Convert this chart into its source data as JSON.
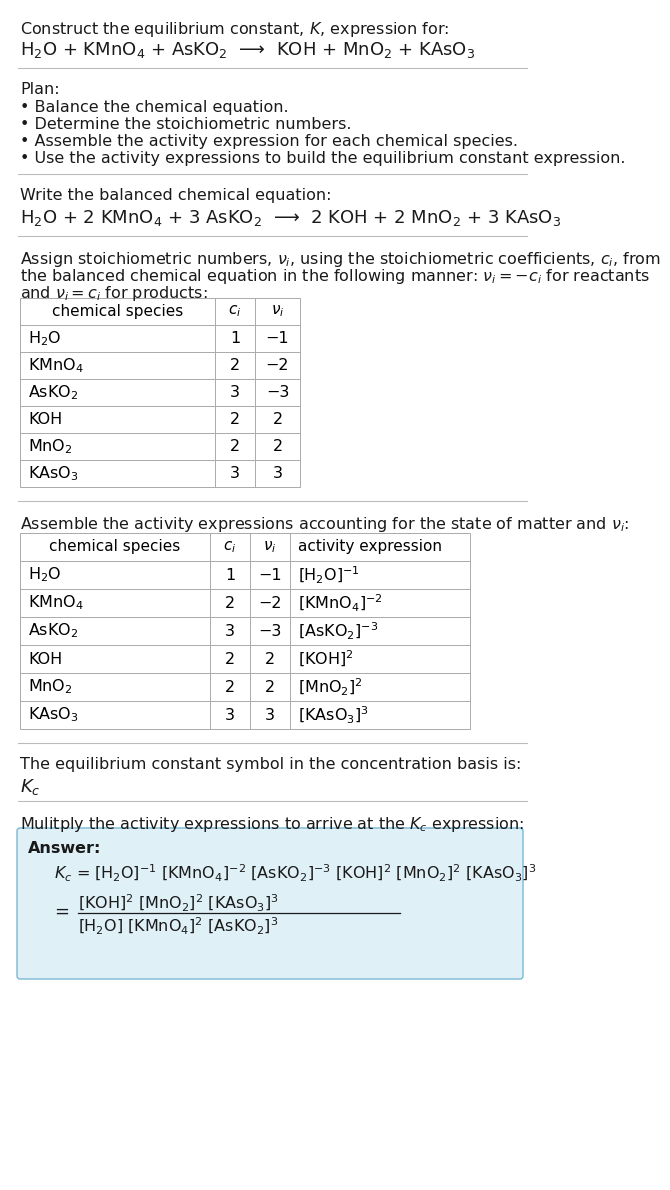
{
  "bg_color": "#ffffff",
  "text_color": "#1a1a1a",
  "title_line1": "Construct the equilibrium constant, $K$, expression for:",
  "eq1_parts": [
    "H$_2$O + KMnO$_4$ + AsKO$_2$",
    " ⟶ ",
    "KOH + MnO$_2$ + KAsO$_3$"
  ],
  "plan_header": "Plan:",
  "plan_bullets": [
    "• Balance the chemical equation.",
    "• Determine the stoichiometric numbers.",
    "• Assemble the activity expression for each chemical species.",
    "• Use the activity expressions to build the equilibrium constant expression."
  ],
  "balanced_header": "Write the balanced chemical equation:",
  "balanced_eq": "H$_2$O + 2 KMnO$_4$ + 3 AsKO$_2$  ⟶  2 KOH + 2 MnO$_2$ + 3 KAsO$_3$",
  "stoich_line1": "Assign stoichiometric numbers, $\\nu_i$, using the stoichiometric coefficients, $c_i$, from",
  "stoich_line2": "the balanced chemical equation in the following manner: $\\nu_i = -c_i$ for reactants",
  "stoich_line3": "and $\\nu_i = c_i$ for products:",
  "table1_col_headers": [
    "chemical species",
    "$c_i$",
    "$\\nu_i$"
  ],
  "table1_rows": [
    [
      "H$_2$O",
      "1",
      "−1"
    ],
    [
      "KMnO$_4$",
      "2",
      "−2"
    ],
    [
      "AsKO$_2$",
      "3",
      "−3"
    ],
    [
      "KOH",
      "2",
      "2"
    ],
    [
      "MnO$_2$",
      "2",
      "2"
    ],
    [
      "KAsO$_3$",
      "3",
      "3"
    ]
  ],
  "activity_header": "Assemble the activity expressions accounting for the state of matter and $\\nu_i$:",
  "table2_col_headers": [
    "chemical species",
    "$c_i$",
    "$\\nu_i$",
    "activity expression"
  ],
  "table2_rows": [
    [
      "H$_2$O",
      "1",
      "−1",
      "[H$_2$O]$^{-1}$"
    ],
    [
      "KMnO$_4$",
      "2",
      "−2",
      "[KMnO$_4$]$^{-2}$"
    ],
    [
      "AsKO$_2$",
      "3",
      "−3",
      "[AsKO$_2$]$^{-3}$"
    ],
    [
      "KOH",
      "2",
      "2",
      "[KOH]$^2$"
    ],
    [
      "MnO$_2$",
      "2",
      "2",
      "[MnO$_2$]$^2$"
    ],
    [
      "KAsO$_3$",
      "3",
      "3",
      "[KAsO$_3$]$^3$"
    ]
  ],
  "kc_header": "The equilibrium constant symbol in the concentration basis is:",
  "kc_symbol": "$K_c$",
  "multiply_header": "Mulitply the activity expressions to arrive at the $K_c$ expression:",
  "answer_label": "Answer:",
  "kc_eq_line": "$K_c$ = [H$_2$O]$^{-1}$ [KMnO$_4$]$^{-2}$ [AsKO$_2$]$^{-3}$ [KOH]$^2$ [MnO$_2$]$^2$ [KAsO$_3$]$^3$",
  "kc_eq_eq": "=",
  "kc_frac_num": "[KOH]$^2$ [MnO$_2$]$^2$ [KAsO$_3$]$^3$",
  "kc_frac_den": "[H$_2$O] [KMnO$_4$]$^2$ [AsKO$_2$]$^3$",
  "answer_box_fill": "#dff0f7",
  "answer_box_edge": "#7ab8d4",
  "sep_line_color": "#bbbbbb",
  "table_line_color": "#aaaaaa"
}
